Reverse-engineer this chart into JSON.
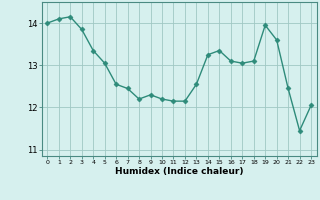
{
  "x": [
    0,
    1,
    2,
    3,
    4,
    5,
    6,
    7,
    8,
    9,
    10,
    11,
    12,
    13,
    14,
    15,
    16,
    17,
    18,
    19,
    20,
    21,
    22,
    23
  ],
  "y": [
    14.0,
    14.1,
    14.15,
    13.85,
    13.35,
    13.05,
    12.55,
    12.45,
    12.2,
    12.3,
    12.2,
    12.15,
    12.15,
    12.55,
    13.25,
    13.35,
    13.1,
    13.05,
    13.1,
    13.95,
    13.6,
    12.45,
    11.45,
    12.05
  ],
  "line_color": "#2e8b7a",
  "marker_color": "#2e8b7a",
  "bg_color": "#d6f0ee",
  "grid_color": "#a0c8c4",
  "xlabel": "Humidex (Indice chaleur)",
  "ylim": [
    10.85,
    14.5
  ],
  "yticks": [
    11,
    12,
    13,
    14
  ],
  "xlim": [
    -0.5,
    23.5
  ],
  "xlabel_fontsize": 6.5,
  "xlabel_fontweight": "bold",
  "ytick_fontsize": 6,
  "xtick_fontsize": 4.5,
  "spine_color": "#4a8a82",
  "tick_color": "#4a8a82"
}
